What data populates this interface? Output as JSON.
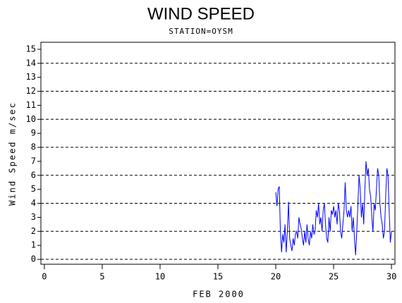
{
  "chart_data": {
    "type": "line",
    "title": "WIND SPEED",
    "subtitle": "STATION=OYSM",
    "x_label": "FEB 2000",
    "y_label": "Wind Speed m/sec",
    "xlim": [
      -0.3,
      30.3
    ],
    "xticks": [
      0,
      5,
      10,
      15,
      20,
      25,
      30
    ],
    "ylim": [
      -0.35,
      15.5
    ],
    "yticks": [
      0,
      1,
      2,
      3,
      4,
      5,
      6,
      7,
      8,
      9,
      10,
      11,
      12,
      13,
      14,
      15
    ],
    "grid_values": [
      0,
      2,
      4,
      6,
      8,
      10,
      12,
      14
    ],
    "x": [
      20.0,
      20.1,
      20.2,
      20.3,
      20.4,
      20.5,
      20.6,
      20.7,
      20.8,
      20.9,
      21.0,
      21.1,
      21.2,
      21.3,
      21.4,
      21.5,
      21.6,
      21.7,
      21.8,
      21.9,
      22.0,
      22.1,
      22.2,
      22.3,
      22.4,
      22.5,
      22.6,
      22.7,
      22.8,
      22.9,
      23.0,
      23.1,
      23.2,
      23.3,
      23.4,
      23.5,
      23.6,
      23.7,
      23.8,
      23.9,
      24.0,
      24.1,
      24.2,
      24.3,
      24.4,
      24.5,
      24.6,
      24.7,
      24.8,
      24.9,
      25.0,
      25.1,
      25.2,
      25.3,
      25.4,
      25.5,
      25.6,
      25.7,
      25.8,
      25.9,
      26.0,
      26.1,
      26.2,
      26.3,
      26.4,
      26.5,
      26.6,
      26.7,
      26.8,
      26.9,
      27.0,
      27.1,
      27.2,
      27.3,
      27.4,
      27.5,
      27.6,
      27.7,
      27.8,
      27.9,
      28.0,
      28.1,
      28.2,
      28.3,
      28.4,
      28.5,
      28.6,
      28.7,
      28.8,
      28.9,
      29.0,
      29.1,
      29.2,
      29.3,
      29.4,
      29.5,
      29.6,
      29.7,
      29.8,
      29.9,
      30.0
    ],
    "series": [
      {
        "name": "Wind Speed",
        "color": "#0000ff",
        "values": [
          4.8,
          3.8,
          5.0,
          5.2,
          2.0,
          0.5,
          1.8,
          1.2,
          2.5,
          0.5,
          2.0,
          4.1,
          1.5,
          1.0,
          0.6,
          1.5,
          1.0,
          1.8,
          2.0,
          1.5,
          3.0,
          2.5,
          2.2,
          1.5,
          1.0,
          2.0,
          1.2,
          2.5,
          1.5,
          1.0,
          2.0,
          1.5,
          2.5,
          1.8,
          2.0,
          3.5,
          3.0,
          4.0,
          2.5,
          3.0,
          2.0,
          3.5,
          4.0,
          2.5,
          1.5,
          1.2,
          3.0,
          2.0,
          3.5,
          3.2,
          3.8,
          3.0,
          3.5,
          2.5,
          4.0,
          3.5,
          2.0,
          1.5,
          2.5,
          3.5,
          5.5,
          3.5,
          3.0,
          3.5,
          3.0,
          3.8,
          2.0,
          3.0,
          1.5,
          0.3,
          2.0,
          4.0,
          6.0,
          5.0,
          3.0,
          4.0,
          2.5,
          5.0,
          7.0,
          6.0,
          6.5,
          5.0,
          4.5,
          3.0,
          2.0,
          4.0,
          3.5,
          5.0,
          6.5,
          6.0,
          4.0,
          3.0,
          2.5,
          1.5,
          2.0,
          4.5,
          6.5,
          6.0,
          3.5,
          1.2,
          2.0
        ]
      }
    ]
  }
}
